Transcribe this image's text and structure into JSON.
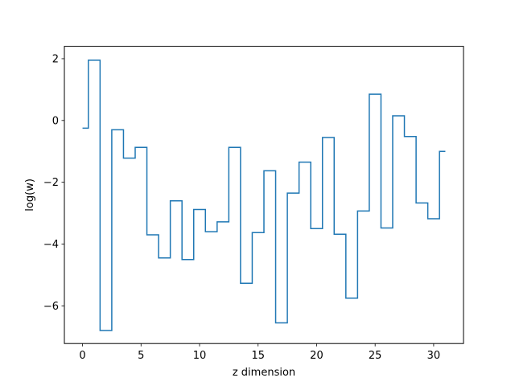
{
  "chart_data": {
    "type": "line",
    "drawstyle": "steps-mid",
    "xlabel": "z dimension",
    "ylabel": "log(w)",
    "xlim": [
      -1.55,
      32.55
    ],
    "ylim": [
      -7.22,
      2.4
    ],
    "grid": false,
    "legend": "none",
    "x_ticks": [
      0,
      5,
      10,
      15,
      20,
      25,
      30
    ],
    "y_ticks": [
      2,
      0,
      -2,
      -4,
      -6
    ],
    "x_tick_labels": [
      "0",
      "5",
      "10",
      "15",
      "20",
      "25",
      "30"
    ],
    "y_tick_labels": [
      "2",
      "0",
      "−2",
      "−4",
      "−6"
    ],
    "series": [
      {
        "color": "#1f77b4",
        "x": [
          0,
          1,
          2,
          3,
          4,
          5,
          6,
          7,
          8,
          9,
          10,
          11,
          12,
          13,
          14,
          15,
          16,
          17,
          18,
          19,
          20,
          21,
          22,
          23,
          24,
          25,
          26,
          27,
          28,
          29,
          30,
          31
        ],
        "values": [
          -0.25,
          1.95,
          -6.8,
          -0.3,
          -1.22,
          -0.87,
          -3.7,
          -4.45,
          -2.6,
          -4.5,
          -2.88,
          -3.6,
          -3.28,
          -0.87,
          -5.27,
          -3.63,
          -1.63,
          -6.55,
          -2.35,
          -1.35,
          -3.5,
          -0.55,
          -3.68,
          -5.75,
          -2.93,
          0.85,
          -3.48,
          0.15,
          -0.52,
          -2.67,
          -3.18,
          -1.0
        ]
      }
    ]
  }
}
